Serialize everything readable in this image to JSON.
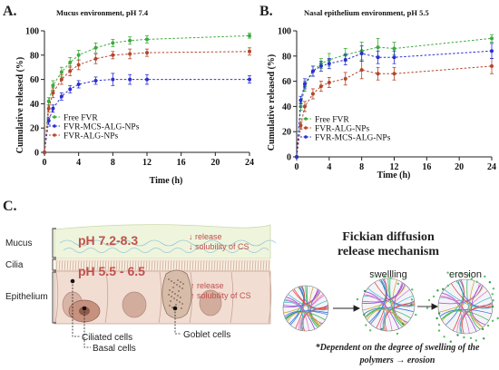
{
  "panels": {
    "a_letter": "A.",
    "b_letter": "B.",
    "c_letter": "C."
  },
  "chart_data": [
    {
      "type": "line",
      "title": "Mucus environment, pH 7.4",
      "xlabel": "Time (h)",
      "ylabel": "Cumulative released (%)",
      "xlim": [
        0,
        24
      ],
      "ylim": [
        0,
        100
      ],
      "xticks": [
        "0",
        "4",
        "8",
        "12",
        "16",
        "20",
        "24"
      ],
      "yticks": [
        "0",
        "20",
        "40",
        "60",
        "80",
        "100"
      ],
      "grid": false,
      "legend_position": "bottom-left",
      "series": [
        {
          "name": "Free FVR",
          "color": "#3cab3c",
          "x": [
            0,
            0.5,
            1,
            2,
            3,
            4,
            6,
            8,
            10,
            12,
            24
          ],
          "y": [
            0,
            42,
            55,
            66,
            74,
            80,
            86,
            90,
            92,
            93,
            96
          ],
          "err": [
            0,
            3,
            4,
            4,
            4,
            4,
            4,
            3,
            3,
            3,
            2
          ]
        },
        {
          "name": "FVR-MCS-ALG-NPs",
          "color": "#2c2ed2",
          "x": [
            0,
            0.5,
            1,
            2,
            3,
            4,
            6,
            8,
            10,
            12,
            24
          ],
          "y": [
            0,
            26,
            36,
            46,
            52,
            56,
            59,
            60,
            60,
            60,
            60
          ],
          "err": [
            0,
            3,
            3,
            3,
            3,
            3,
            3,
            5,
            4,
            4,
            3
          ]
        },
        {
          "name": "FVR-ALG-NPs",
          "color": "#b5462a",
          "x": [
            0,
            0.5,
            1,
            2,
            3,
            4,
            6,
            8,
            10,
            12,
            24
          ],
          "y": [
            0,
            36,
            49,
            60,
            67,
            72,
            77,
            80,
            81,
            82,
            83
          ],
          "err": [
            0,
            3,
            4,
            4,
            4,
            4,
            4,
            3,
            4,
            3,
            3
          ]
        }
      ]
    },
    {
      "type": "line",
      "title": "Nasal epithelium environment, pH 5.5",
      "xlabel": "Time (h)",
      "ylabel": "Cumulative released (%)",
      "xlim": [
        0,
        24
      ],
      "ylim": [
        0,
        100
      ],
      "xticks": [
        "0",
        "4",
        "8",
        "12",
        "16",
        "20",
        "24"
      ],
      "yticks": [
        "0",
        "20",
        "40",
        "60",
        "80",
        "100"
      ],
      "grid": false,
      "legend_position": "bottom-left",
      "series": [
        {
          "name": "Free FVR",
          "color": "#3cab3c",
          "x": [
            0,
            0.5,
            1,
            2,
            3,
            4,
            6,
            8,
            10,
            12,
            24
          ],
          "y": [
            0,
            40,
            56,
            68,
            74,
            77,
            81,
            84,
            87,
            86,
            94
          ],
          "err": [
            0,
            3,
            4,
            4,
            4,
            5,
            5,
            7,
            7,
            5,
            3
          ]
        },
        {
          "name": "FVR-ALG-NPs",
          "color": "#b5462a",
          "x": [
            0,
            0.5,
            1,
            2,
            3,
            4,
            6,
            8,
            10,
            12,
            24
          ],
          "y": [
            0,
            25,
            40,
            50,
            56,
            59,
            62,
            69,
            66,
            66,
            72
          ],
          "err": [
            0,
            3,
            4,
            4,
            4,
            4,
            5,
            7,
            5,
            5,
            6
          ]
        },
        {
          "name": "FVR-MCS-ALG-NPs",
          "color": "#2c2ed2",
          "x": [
            0,
            0.5,
            1,
            2,
            3,
            4,
            6,
            8,
            10,
            12,
            24
          ],
          "y": [
            0,
            45,
            58,
            68,
            72,
            74,
            77,
            82,
            79,
            79,
            84
          ],
          "err": [
            0,
            3,
            4,
            4,
            4,
            4,
            4,
            6,
            5,
            5,
            6
          ]
        }
      ]
    }
  ],
  "schematic": {
    "layers": {
      "mucus": "Mucus",
      "cilia": "Cilia",
      "epithelium": "Epithelium"
    },
    "ph_mucus": "pH 7.2-8.3",
    "ph_epithelium": "pH 5.5 - 6.5",
    "mucus_effect": [
      "↓ release",
      "↓ solubility of CS"
    ],
    "epithelium_effect": [
      "↑ release",
      "↑ solubility of CS"
    ],
    "cell_labels": {
      "ciliated": "Ciliated cells",
      "basal": "Basal cells",
      "goblet": "Goblet cells"
    },
    "colors": {
      "ph_text": "#c0504d",
      "mucus_fill": "#eef5dc",
      "cell_fill": "#efd9cf"
    }
  },
  "mechanism": {
    "title_line1": "Fickian diffusion",
    "title_line2": "release mechanism",
    "stage_swelling": "swellling",
    "stage_erosion": "erosion",
    "footnote_line1": "*Dependent on the degree of swelling of the",
    "footnote_line2": "polymers → erosion"
  }
}
